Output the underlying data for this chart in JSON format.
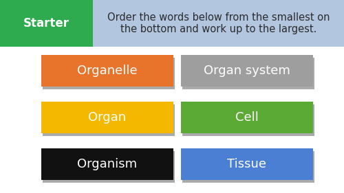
{
  "background_color": "#ffffff",
  "header_bg_color": "#b3c6e0",
  "starter_bg_color": "#2eab4e",
  "starter_text": "Starter",
  "starter_text_color": "#ffffff",
  "header_text": "Order the words below from the smallest on\nthe bottom and work up to the largest.",
  "header_text_color": "#2b2b2b",
  "buttons": [
    {
      "label": "Organelle",
      "color": "#e8732a",
      "text_color": "#ffffff",
      "col": 0,
      "row": 0
    },
    {
      "label": "Organ system",
      "color": "#9e9e9e",
      "text_color": "#ffffff",
      "col": 1,
      "row": 0
    },
    {
      "label": "Organ",
      "color": "#f5b800",
      "text_color": "#ffffff",
      "col": 0,
      "row": 1
    },
    {
      "label": "Cell",
      "color": "#5aaa35",
      "text_color": "#ffffff",
      "col": 1,
      "row": 1
    },
    {
      "label": "Organism",
      "color": "#111111",
      "text_color": "#ffffff",
      "col": 0,
      "row": 2
    },
    {
      "label": "Tissue",
      "color": "#4a7fd4",
      "text_color": "#ffffff",
      "col": 1,
      "row": 2
    }
  ],
  "button_fontsize": 13,
  "starter_fontsize": 12,
  "header_fontsize": 10.5,
  "fig_width": 5.0,
  "fig_height": 2.81,
  "dpi": 100
}
